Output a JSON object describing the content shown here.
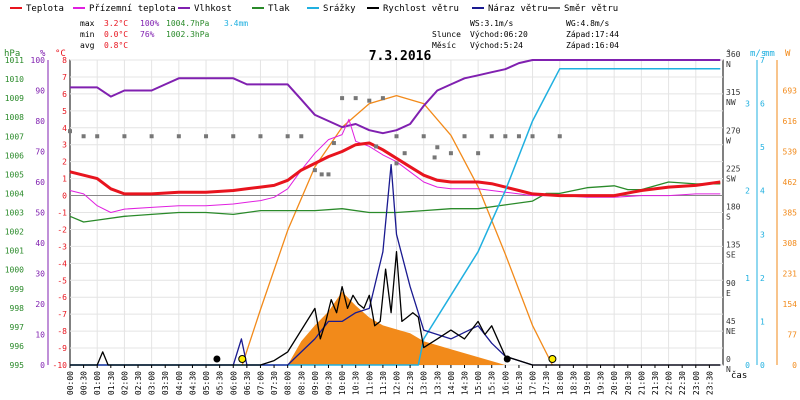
{
  "chart_data": {
    "type": "line",
    "title": "7.3.2016",
    "legend": [
      {
        "name": "Teplota",
        "color": "#e8141e"
      },
      {
        "name": "Přízemní teplota",
        "color": "#e020e0"
      },
      {
        "name": "Vlhkost",
        "color": "#8020b0"
      },
      {
        "name": "Tlak",
        "color": "#2a8a2a"
      },
      {
        "name": "Srážky",
        "color": "#20b0e0"
      },
      {
        "name": "Rychlost větru",
        "color": "#000000"
      },
      {
        "name": "Náraz větru",
        "color": "#1a1a90"
      },
      {
        "name": "Směr větru",
        "color": "#707070"
      }
    ],
    "stats": {
      "max": {
        "label": "max",
        "temp": "3.2°C",
        "hum": "100%",
        "press": "1004.7hPa",
        "rain": "3.4mm"
      },
      "min": {
        "label": "min",
        "temp": "0.0°C",
        "hum": "76%",
        "press": "1002.3hPa"
      },
      "avg": {
        "label": "avg",
        "temp": "0.8°C"
      }
    },
    "info": {
      "ws": "WS:3.1m/s",
      "wg": "WG:4.8m/s",
      "sun_label": "Slunce",
      "sun_rise": "Východ:06:20",
      "sun_set": "Západ:17:44",
      "moon_label": "Měsíc",
      "moon_rise": "Východ:5:24",
      "moon_set": "Západ:16:04"
    },
    "axis_titles": {
      "hpa": "hPa",
      "pct": "%",
      "degc": "°C",
      "deg": "°",
      "ms": "m/s",
      "mm": "mm",
      "wm2": "W"
    },
    "xlabel": "čas",
    "x_ticks": [
      "00:00",
      "00:30",
      "01:00",
      "01:30",
      "02:00",
      "02:30",
      "03:00",
      "03:30",
      "04:00",
      "04:30",
      "05:00",
      "05:30",
      "06:00",
      "06:30",
      "07:00",
      "07:30",
      "08:00",
      "08:30",
      "09:00",
      "09:30",
      "10:00",
      "10:30",
      "11:00",
      "11:30",
      "12:00",
      "12:30",
      "13:00",
      "13:30",
      "14:00",
      "14:30",
      "15:00",
      "15:30",
      "16:00",
      "16:30",
      "17:00",
      "17:30",
      "18:00",
      "18:30",
      "19:00",
      "19:30",
      "20:00",
      "20:30",
      "21:00",
      "21:30",
      "22:00",
      "22:30",
      "23:00",
      "23:30"
    ],
    "axes": {
      "hpa": {
        "range": [
          995,
          1011
        ],
        "ticks": [
          "995",
          "996",
          "997",
          "998",
          "999",
          "1000",
          "1001",
          "1002",
          "1003",
          "1004",
          "1005",
          "1006",
          "1007",
          "1008",
          "1009",
          "1010",
          "1011"
        ]
      },
      "pct": {
        "range": [
          0,
          100
        ],
        "ticks": [
          "0",
          "10",
          "20",
          "30",
          "40",
          "50",
          "60",
          "70",
          "80",
          "90",
          "100"
        ]
      },
      "degc": {
        "range": [
          -10,
          8
        ],
        "ticks": [
          "-10",
          "-9",
          "-8",
          "-7",
          "-6",
          "-5",
          "-4",
          "-3",
          "-2",
          "-1",
          "0",
          "1",
          "2",
          "3",
          "4",
          "5",
          "6",
          "7",
          "8"
        ]
      },
      "deg": {
        "range": [
          0,
          360
        ],
        "ticks": [
          {
            "v": 0,
            "a": "0",
            "b": "N"
          },
          {
            "v": 45,
            "a": "45",
            "b": "NE"
          },
          {
            "v": 90,
            "a": "90",
            "b": "E"
          },
          {
            "v": 135,
            "a": "135",
            "b": "SE"
          },
          {
            "v": 180,
            "a": "180",
            "b": "S"
          },
          {
            "v": 225,
            "a": "225",
            "b": "SW"
          },
          {
            "v": 270,
            "a": "270",
            "b": "W"
          },
          {
            "v": 315,
            "a": "315",
            "b": "NW"
          },
          {
            "v": 360,
            "a": "360",
            "b": "N"
          }
        ]
      },
      "ms": {
        "range": [
          0,
          7
        ],
        "ticks": [
          "0",
          "1",
          "2",
          "3",
          "4",
          "5",
          "6",
          "7"
        ]
      },
      "mm": {
        "range": [
          0,
          3.5
        ],
        "ticks": [
          "0",
          "1",
          "2",
          "3"
        ]
      },
      "wm2": {
        "range": [
          0,
          770
        ],
        "ticks": [
          "0",
          "77",
          "154",
          "231",
          "308",
          "385",
          "462",
          "539",
          "616",
          "693"
        ]
      }
    },
    "series": {
      "temperature_c": [
        [
          0,
          1.4
        ],
        [
          0.5,
          1.2
        ],
        [
          1,
          1.0
        ],
        [
          1.5,
          0.4
        ],
        [
          2,
          0.1
        ],
        [
          3,
          0.1
        ],
        [
          4,
          0.2
        ],
        [
          5,
          0.2
        ],
        [
          6,
          0.3
        ],
        [
          6.5,
          0.4
        ],
        [
          7,
          0.5
        ],
        [
          7.5,
          0.6
        ],
        [
          8,
          0.9
        ],
        [
          8.5,
          1.5
        ],
        [
          9,
          1.9
        ],
        [
          9.5,
          2.3
        ],
        [
          10,
          2.6
        ],
        [
          10.5,
          3.0
        ],
        [
          11,
          3.1
        ],
        [
          11.5,
          2.7
        ],
        [
          12,
          2.2
        ],
        [
          12.5,
          1.7
        ],
        [
          13,
          1.2
        ],
        [
          13.5,
          0.9
        ],
        [
          14,
          0.8
        ],
        [
          14.5,
          0.8
        ],
        [
          15,
          0.8
        ],
        [
          15.5,
          0.7
        ],
        [
          16,
          0.5
        ],
        [
          16.5,
          0.3
        ],
        [
          17,
          0.1
        ],
        [
          18,
          0.0
        ],
        [
          19,
          0.0
        ],
        [
          20,
          0.0
        ],
        [
          21,
          0.3
        ],
        [
          22,
          0.5
        ],
        [
          23,
          0.6
        ],
        [
          23.9,
          0.8
        ]
      ],
      "ground_temp_c": [
        [
          0,
          0.3
        ],
        [
          0.5,
          0.1
        ],
        [
          1,
          -0.6
        ],
        [
          1.5,
          -1.0
        ],
        [
          2,
          -0.8
        ],
        [
          3,
          -0.7
        ],
        [
          4,
          -0.6
        ],
        [
          5,
          -0.6
        ],
        [
          6,
          -0.5
        ],
        [
          6.5,
          -0.4
        ],
        [
          7,
          -0.3
        ],
        [
          7.5,
          -0.1
        ],
        [
          8,
          0.4
        ],
        [
          8.5,
          1.5
        ],
        [
          9,
          2.5
        ],
        [
          9.5,
          3.3
        ],
        [
          10,
          3.6
        ],
        [
          10.25,
          4.5
        ],
        [
          10.5,
          3.2
        ],
        [
          11,
          2.9
        ],
        [
          11.5,
          2.4
        ],
        [
          12,
          2.0
        ],
        [
          12.5,
          1.4
        ],
        [
          13,
          0.8
        ],
        [
          13.5,
          0.5
        ],
        [
          14,
          0.4
        ],
        [
          14.5,
          0.4
        ],
        [
          15,
          0.4
        ],
        [
          15.5,
          0.3
        ],
        [
          16,
          0.2
        ],
        [
          17,
          0.0
        ],
        [
          18,
          0.0
        ],
        [
          19,
          -0.1
        ],
        [
          20,
          -0.1
        ],
        [
          21,
          0.0
        ],
        [
          22,
          0.0
        ],
        [
          23,
          0.1
        ],
        [
          23.9,
          0.1
        ]
      ],
      "humidity_pct": [
        [
          0,
          91
        ],
        [
          1,
          91
        ],
        [
          1.5,
          88
        ],
        [
          2,
          90
        ],
        [
          3,
          90
        ],
        [
          3.5,
          92
        ],
        [
          4,
          94
        ],
        [
          5,
          94
        ],
        [
          6,
          94
        ],
        [
          6.5,
          92
        ],
        [
          7,
          92
        ],
        [
          8,
          92
        ],
        [
          8.5,
          87
        ],
        [
          9,
          82
        ],
        [
          9.5,
          80
        ],
        [
          10,
          78
        ],
        [
          10.5,
          79
        ],
        [
          11,
          77
        ],
        [
          11.5,
          76
        ],
        [
          12,
          77
        ],
        [
          12.5,
          79
        ],
        [
          13,
          85
        ],
        [
          13.5,
          90
        ],
        [
          14,
          92
        ],
        [
          14.5,
          94
        ],
        [
          15,
          95
        ],
        [
          15.5,
          96
        ],
        [
          16,
          97
        ],
        [
          16.5,
          99
        ],
        [
          17,
          100
        ],
        [
          18,
          100
        ],
        [
          20,
          100
        ],
        [
          22,
          100
        ],
        [
          23.9,
          100
        ]
      ],
      "pressure_hpa": [
        [
          0,
          1002.8
        ],
        [
          0.5,
          1002.5
        ],
        [
          1,
          1002.6
        ],
        [
          2,
          1002.8
        ],
        [
          3,
          1002.9
        ],
        [
          4,
          1003.0
        ],
        [
          5,
          1003.0
        ],
        [
          6,
          1002.9
        ],
        [
          7,
          1003.1
        ],
        [
          8,
          1003.1
        ],
        [
          9,
          1003.1
        ],
        [
          10,
          1003.2
        ],
        [
          11,
          1003.0
        ],
        [
          12,
          1003.0
        ],
        [
          13,
          1003.1
        ],
        [
          14,
          1003.2
        ],
        [
          15,
          1003.2
        ],
        [
          16,
          1003.4
        ],
        [
          17,
          1003.6
        ],
        [
          17.5,
          1004.0
        ],
        [
          18,
          1004.0
        ],
        [
          19,
          1004.3
        ],
        [
          20,
          1004.4
        ],
        [
          20.5,
          1004.2
        ],
        [
          21,
          1004.2
        ],
        [
          22,
          1004.6
        ],
        [
          23,
          1004.5
        ],
        [
          23.9,
          1004.5
        ]
      ],
      "rain_mm": [
        [
          0,
          0
        ],
        [
          12.8,
          0
        ],
        [
          13,
          0.3
        ],
        [
          14,
          0.8
        ],
        [
          15,
          1.3
        ],
        [
          16,
          2.0
        ],
        [
          17,
          2.8
        ],
        [
          17.5,
          3.1
        ],
        [
          18,
          3.4
        ],
        [
          20,
          3.4
        ],
        [
          23.9,
          3.4
        ]
      ],
      "wind_speed_ms": [
        [
          0,
          0
        ],
        [
          1,
          0
        ],
        [
          1.2,
          0.3
        ],
        [
          1.4,
          0
        ],
        [
          7,
          0
        ],
        [
          7.5,
          0.1
        ],
        [
          8,
          0.3
        ],
        [
          8.5,
          0.8
        ],
        [
          9,
          1.3
        ],
        [
          9.2,
          0.6
        ],
        [
          9.4,
          1.0
        ],
        [
          9.6,
          1.5
        ],
        [
          9.8,
          1.2
        ],
        [
          10,
          1.8
        ],
        [
          10.2,
          1.3
        ],
        [
          10.4,
          1.6
        ],
        [
          10.6,
          1.4
        ],
        [
          10.8,
          1.3
        ],
        [
          11,
          1.6
        ],
        [
          11.2,
          0.9
        ],
        [
          11.4,
          1.0
        ],
        [
          11.6,
          2.2
        ],
        [
          11.8,
          1.2
        ],
        [
          12,
          2.6
        ],
        [
          12.2,
          1.0
        ],
        [
          12.4,
          1.1
        ],
        [
          12.6,
          1.2
        ],
        [
          12.8,
          1.1
        ],
        [
          13,
          0.4
        ],
        [
          13.5,
          0.6
        ],
        [
          14,
          0.8
        ],
        [
          14.5,
          0.6
        ],
        [
          15,
          1.0
        ],
        [
          15.25,
          0.7
        ],
        [
          15.5,
          0.9
        ],
        [
          16,
          0.2
        ],
        [
          16.5,
          0.1
        ],
        [
          17,
          0
        ],
        [
          23.9,
          0
        ]
      ],
      "wind_gust_ms": [
        [
          0,
          0
        ],
        [
          6,
          0
        ],
        [
          6.3,
          0.6
        ],
        [
          6.5,
          0
        ],
        [
          8,
          0
        ],
        [
          8.5,
          0.3
        ],
        [
          9,
          0.6
        ],
        [
          9.5,
          1.0
        ],
        [
          10,
          1.0
        ],
        [
          10.5,
          1.2
        ],
        [
          11,
          1.3
        ],
        [
          11.5,
          2.6
        ],
        [
          11.8,
          4.6
        ],
        [
          12,
          3.0
        ],
        [
          12.5,
          1.8
        ],
        [
          13,
          0.8
        ],
        [
          14,
          0.6
        ],
        [
          15,
          0.9
        ],
        [
          15.5,
          0.5
        ],
        [
          16,
          0.2
        ],
        [
          17,
          0
        ],
        [
          23.9,
          0
        ]
      ],
      "wind_dir_deg": [
        [
          0,
          276
        ],
        [
          0.5,
          270
        ],
        [
          1,
          270
        ],
        [
          2,
          270
        ],
        [
          3,
          270
        ],
        [
          4,
          270
        ],
        [
          5,
          270
        ],
        [
          6,
          270
        ],
        [
          7,
          270
        ],
        [
          8,
          270
        ],
        [
          8.5,
          270
        ],
        [
          9,
          230
        ],
        [
          9.25,
          225
        ],
        [
          9.5,
          225
        ],
        [
          9.7,
          262
        ],
        [
          10,
          315
        ],
        [
          10.5,
          315
        ],
        [
          11,
          312
        ],
        [
          11.25,
          258
        ],
        [
          11.5,
          315
        ],
        [
          12,
          238
        ],
        [
          12,
          270
        ],
        [
          12.3,
          250
        ],
        [
          13,
          270
        ],
        [
          13.4,
          245
        ],
        [
          13.5,
          257
        ],
        [
          14,
          250
        ],
        [
          14.5,
          270
        ],
        [
          15,
          250
        ],
        [
          15.5,
          270
        ],
        [
          16,
          270
        ],
        [
          16.5,
          270
        ],
        [
          17,
          270
        ],
        [
          18,
          270
        ]
      ],
      "solar_wm2": [
        [
          0,
          0
        ],
        [
          8,
          0
        ],
        [
          8.5,
          60
        ],
        [
          9,
          100
        ],
        [
          9.5,
          135
        ],
        [
          10,
          185
        ],
        [
          10.5,
          150
        ],
        [
          11,
          120
        ],
        [
          11.5,
          100
        ],
        [
          12,
          90
        ],
        [
          12.5,
          80
        ],
        [
          13,
          60
        ],
        [
          14,
          40
        ],
        [
          15,
          20
        ],
        [
          16,
          0
        ],
        [
          23.9,
          0
        ]
      ],
      "solar_theoretical_wm2": [
        [
          6.33,
          0
        ],
        [
          7,
          140
        ],
        [
          8,
          340
        ],
        [
          9,
          500
        ],
        [
          10,
          600
        ],
        [
          11,
          660
        ],
        [
          12,
          680
        ],
        [
          13,
          660
        ],
        [
          14,
          580
        ],
        [
          15,
          450
        ],
        [
          16,
          280
        ],
        [
          17,
          100
        ],
        [
          17.73,
          0
        ]
      ]
    },
    "events": {
      "sunrise_h": 6.33,
      "sunset_h": 17.73,
      "moonrise_h": 5.4,
      "moonset_h": 16.07
    }
  }
}
